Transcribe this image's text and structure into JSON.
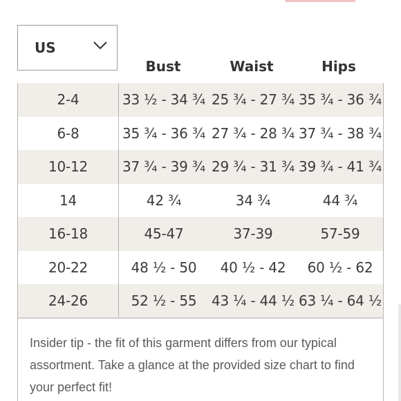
{
  "region_select": {
    "value": "US"
  },
  "columns": {
    "bust": "Bust",
    "waist": "Waist",
    "hips": "Hips"
  },
  "rows": [
    {
      "size": "2-4",
      "bust": "33 ½ - 34 ¾",
      "waist": "25 ¾ - 27 ¾",
      "hips": "35 ¾ - 36 ¾"
    },
    {
      "size": "6-8",
      "bust": "35 ¾ - 36 ¾",
      "waist": "27 ¾ - 28 ¾",
      "hips": "37 ¾ - 38 ¾"
    },
    {
      "size": "10-12",
      "bust": "37 ¾ - 39 ¾",
      "waist": "29 ¾ - 31 ¾",
      "hips": "39 ¾ - 41 ¾"
    },
    {
      "size": "14",
      "bust": "42 ¾",
      "waist": "34 ¾",
      "hips": "44 ¾"
    },
    {
      "size": "16-18",
      "bust": "45-47",
      "waist": "37-39",
      "hips": "57-59"
    },
    {
      "size": "20-22",
      "bust": "48 ½ - 50",
      "waist": "40 ½ - 42",
      "hips": "60 ½ - 62"
    },
    {
      "size": "24-26",
      "bust": "52 ½ - 55",
      "waist": "43 ¼ - 44 ½",
      "hips": "63 ¼ - 64 ½"
    }
  ],
  "tip": "Insider tip - the fit of this garment differs from our typical assortment. Take a glance at the provided size chart to find your perfect fit!",
  "colors": {
    "row_shade": "#f1eeea",
    "accent": "#f3c2c2"
  },
  "icons": {
    "dropdown": "chevron-down-icon"
  }
}
